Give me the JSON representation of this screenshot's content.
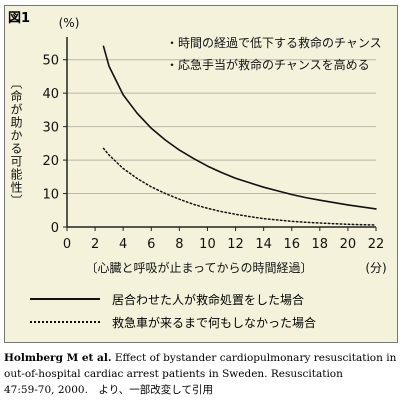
{
  "figure_label": "図1",
  "chart_data": {
    "type": "line",
    "yunit": "(%)",
    "ylabel": "〔命が助かる可能性〕",
    "xlabel": "〔心臓と呼吸が止まってからの時間経過〕",
    "xunit": "(分)",
    "xlim": [
      0,
      22
    ],
    "ylim": [
      0,
      55
    ],
    "xticks": [
      0,
      2,
      4,
      6,
      8,
      10,
      12,
      14,
      16,
      18,
      20,
      22
    ],
    "yticks": [
      0,
      10,
      20,
      30,
      40,
      50
    ],
    "annotations": [
      "・時間の経過で低下する救命のチャンス",
      "・応急手当が救命のチャンスを高める"
    ],
    "series": [
      {
        "name": "居合わせた人が救命処置をした場合",
        "style": "solid",
        "x": [
          2.6,
          3,
          4,
          5,
          6,
          7,
          8,
          9,
          10,
          11,
          12,
          13,
          14,
          15,
          16,
          17,
          18,
          19,
          20,
          21,
          22
        ],
        "y": [
          54,
          48,
          39.5,
          34,
          29.5,
          26,
          23,
          20.5,
          18.2,
          16.3,
          14.6,
          13.2,
          11.9,
          10.8,
          9.7,
          8.8,
          8,
          7.3,
          6.6,
          6,
          5.4
        ]
      },
      {
        "name": "救急車が来るまで何もしなかった場合",
        "style": "dotted",
        "x": [
          2.6,
          3,
          4,
          5,
          6,
          7,
          8,
          9,
          10,
          11,
          12,
          13,
          14,
          15,
          16,
          17,
          18,
          19,
          20,
          21,
          22
        ],
        "y": [
          23.5,
          21.5,
          17.5,
          14.5,
          12,
          10,
          8.3,
          6.8,
          5.6,
          4.6,
          3.8,
          3.1,
          2.5,
          2.1,
          1.7,
          1.4,
          1.2,
          1,
          0.8,
          0.7,
          0.6
        ]
      }
    ]
  },
  "caption": {
    "authors": "Holmberg M et al.",
    "text": " Effect of bystander cardiopulmonary resuscitation in out-of-hospital cardiac arrest patients in Sweden. Resuscitation",
    "citation": "47:59-70, 2000.　より、一部改変して引用"
  }
}
